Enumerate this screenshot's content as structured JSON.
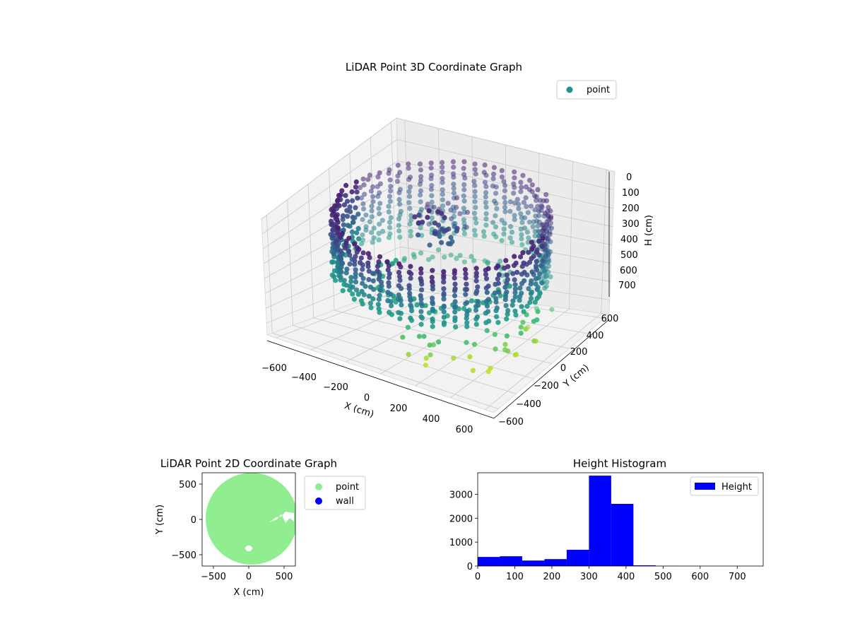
{
  "chart_data": [
    {
      "type": "scatter",
      "projection": "3d",
      "title": "LiDAR Point 3D Coordinate Graph",
      "xlabel": "X (cm)",
      "ylabel": "Y (cm)",
      "zlabel": "H (cm)",
      "xlim": [
        -650,
        650
      ],
      "ylim": [
        -650,
        650
      ],
      "zlim": [
        780,
        0
      ],
      "z_inverted": true,
      "x_ticks": [
        "−600",
        "−400",
        "−200",
        "0",
        "200",
        "400",
        "600"
      ],
      "y_ticks": [
        "−600",
        "−400",
        "−200",
        "0",
        "200",
        "400",
        "600"
      ],
      "z_ticks": [
        "0",
        "100",
        "200",
        "300",
        "400",
        "500",
        "600",
        "700"
      ],
      "colormap": "viridis",
      "legend": {
        "position": "top-right",
        "entries": [
          {
            "label": "point",
            "color": "#21918c"
          }
        ]
      },
      "grid": true,
      "series": [
        {
          "name": "point",
          "shape": "ring wall of points around origin, radius ~600 cm, heights ~50–450 cm, central cluster near origin"
        }
      ]
    },
    {
      "type": "scatter",
      "title": "LiDAR Point 2D Coordinate Graph",
      "xlabel": "X (cm)",
      "ylabel": "Y (cm)",
      "xlim": [
        -650,
        650
      ],
      "ylim": [
        -650,
        650
      ],
      "x_ticks": [
        "−500",
        "0",
        "500"
      ],
      "y_ticks": [
        "−500",
        "0",
        "500"
      ],
      "legend": {
        "position": "outside-right",
        "entries": [
          {
            "label": "point",
            "color": "#90ee90"
          },
          {
            "label": "wall",
            "color": "#0000ff"
          }
        ]
      },
      "series": [
        {
          "name": "point",
          "color": "#90ee90",
          "shape": "filled disc radius ~600 cm"
        },
        {
          "name": "wall",
          "color": "#0000ff"
        }
      ]
    },
    {
      "type": "bar",
      "subtype": "histogram",
      "title": "Height Histogram",
      "xlim": [
        0,
        770
      ],
      "ylim": [
        0,
        3900
      ],
      "x_ticks": [
        0,
        100,
        200,
        300,
        400,
        500,
        600,
        700
      ],
      "y_ticks": [
        0,
        1000,
        2000,
        3000
      ],
      "legend": {
        "position": "top-right",
        "entries": [
          {
            "label": "Height",
            "color": "#0000ff"
          }
        ]
      },
      "bin_edges": [
        0,
        60,
        120,
        180,
        240,
        300,
        360,
        420,
        480,
        540,
        600,
        660,
        720,
        770
      ],
      "series": [
        {
          "name": "Height",
          "color": "#0000ff",
          "values": [
            380,
            410,
            230,
            290,
            680,
            3780,
            2600,
            30,
            5,
            3,
            2,
            1,
            1
          ]
        }
      ]
    }
  ]
}
